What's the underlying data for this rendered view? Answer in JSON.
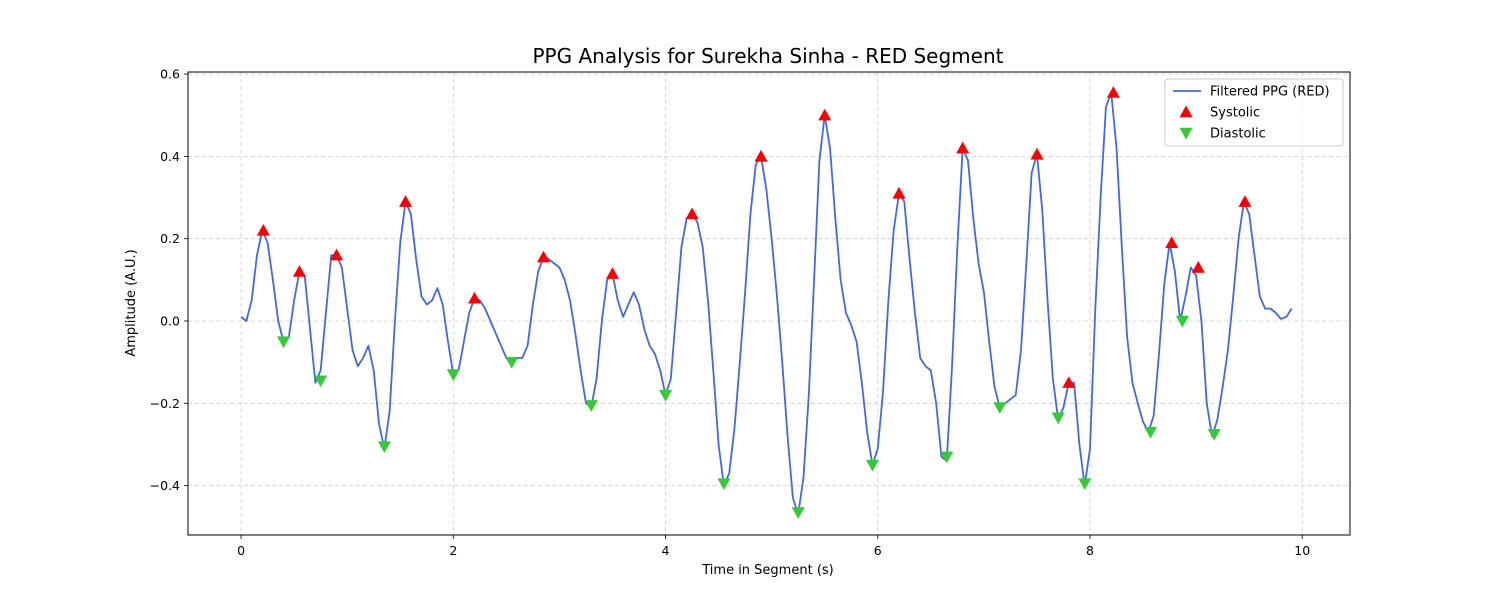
{
  "chart_data": {
    "type": "line",
    "title": "PPG Analysis for Surekha Sinha - RED Segment",
    "xlabel": "Time in Segment (s)",
    "ylabel": "Amplitude (A.U.)",
    "xlim": [
      -0.5,
      10.45
    ],
    "ylim": [
      -0.52,
      0.605
    ],
    "xticks": [
      0,
      2,
      4,
      6,
      8,
      10
    ],
    "yticks": [
      -0.4,
      -0.2,
      0.0,
      0.2,
      0.4,
      0.6
    ],
    "xtick_labels": [
      "0",
      "2",
      "4",
      "6",
      "8",
      "10"
    ],
    "ytick_labels": [
      "−0.4",
      "−0.2",
      "0.0",
      "0.2",
      "0.4",
      "0.6"
    ],
    "grid": true,
    "legend_position": "top-right",
    "colors": {
      "line": "#4169e1",
      "systolic": "#ff0000",
      "diastolic": "#32cd32",
      "grid": "#cccccc"
    },
    "series": [
      {
        "name": "Filtered PPG (RED)",
        "kind": "line",
        "x": [
          0,
          0.05,
          0.1,
          0.15,
          0.2,
          0.25,
          0.3,
          0.35,
          0.4,
          0.45,
          0.5,
          0.55,
          0.6,
          0.65,
          0.7,
          0.75,
          0.8,
          0.85,
          0.9,
          0.95,
          1.0,
          1.05,
          1.1,
          1.15,
          1.2,
          1.25,
          1.3,
          1.35,
          1.4,
          1.45,
          1.5,
          1.55,
          1.6,
          1.65,
          1.7,
          1.75,
          1.8,
          1.85,
          1.9,
          1.95,
          2.0,
          2.05,
          2.1,
          2.15,
          2.2,
          2.25,
          2.3,
          2.35,
          2.4,
          2.45,
          2.5,
          2.55,
          2.6,
          2.65,
          2.7,
          2.75,
          2.8,
          2.85,
          2.9,
          2.95,
          3.0,
          3.05,
          3.1,
          3.15,
          3.2,
          3.25,
          3.3,
          3.35,
          3.4,
          3.45,
          3.5,
          3.55,
          3.6,
          3.65,
          3.7,
          3.75,
          3.8,
          3.85,
          3.9,
          3.95,
          4.0,
          4.05,
          4.1,
          4.15,
          4.2,
          4.25,
          4.3,
          4.35,
          4.4,
          4.45,
          4.5,
          4.55,
          4.6,
          4.65,
          4.7,
          4.75,
          4.8,
          4.85,
          4.9,
          4.95,
          5.0,
          5.05,
          5.1,
          5.15,
          5.2,
          5.25,
          5.3,
          5.35,
          5.4,
          5.45,
          5.5,
          5.55,
          5.6,
          5.65,
          5.7,
          5.75,
          5.8,
          5.85,
          5.9,
          5.95,
          6.0,
          6.05,
          6.1,
          6.15,
          6.2,
          6.25,
          6.3,
          6.35,
          6.4,
          6.45,
          6.5,
          6.55,
          6.6,
          6.65,
          6.7,
          6.75,
          6.8,
          6.85,
          6.9,
          6.95,
          7.0,
          7.05,
          7.1,
          7.15,
          7.2,
          7.25,
          7.3,
          7.35,
          7.4,
          7.45,
          7.5,
          7.55,
          7.6,
          7.65,
          7.7,
          7.75,
          7.8,
          7.85,
          7.9,
          7.95,
          8.0,
          8.05,
          8.1,
          8.15,
          8.2,
          8.25,
          8.3,
          8.35,
          8.4,
          8.45,
          8.5,
          8.55,
          8.6,
          8.65,
          8.7,
          8.75,
          8.8,
          8.85,
          8.9,
          8.95,
          9.0,
          9.05,
          9.1,
          9.15,
          9.2,
          9.25,
          9.3,
          9.35,
          9.4,
          9.45,
          9.5,
          9.55,
          9.6,
          9.65,
          9.7,
          9.75,
          9.8,
          9.85,
          9.9
        ],
        "values": [
          0.01,
          0.0,
          0.05,
          0.16,
          0.22,
          0.19,
          0.1,
          0.0,
          -0.05,
          -0.04,
          0.05,
          0.12,
          0.11,
          -0.02,
          -0.15,
          -0.12,
          0.02,
          0.16,
          0.16,
          0.13,
          0.03,
          -0.07,
          -0.11,
          -0.09,
          -0.06,
          -0.12,
          -0.25,
          -0.31,
          -0.22,
          0.0,
          0.19,
          0.29,
          0.26,
          0.15,
          0.06,
          0.04,
          0.05,
          0.08,
          0.04,
          -0.05,
          -0.13,
          -0.12,
          -0.05,
          0.02,
          0.055,
          0.05,
          0.03,
          0.0,
          -0.03,
          -0.06,
          -0.09,
          -0.1,
          -0.09,
          -0.09,
          -0.06,
          0.04,
          0.12,
          0.155,
          0.15,
          0.14,
          0.13,
          0.1,
          0.05,
          -0.03,
          -0.12,
          -0.2,
          -0.21,
          -0.14,
          0.0,
          0.1,
          0.115,
          0.05,
          0.01,
          0.04,
          0.07,
          0.04,
          -0.02,
          -0.06,
          -0.08,
          -0.12,
          -0.18,
          -0.14,
          0.02,
          0.18,
          0.25,
          0.26,
          0.24,
          0.18,
          0.05,
          -0.12,
          -0.3,
          -0.4,
          -0.37,
          -0.26,
          -0.1,
          0.07,
          0.26,
          0.38,
          0.4,
          0.32,
          0.2,
          0.06,
          -0.1,
          -0.28,
          -0.43,
          -0.47,
          -0.38,
          -0.18,
          0.1,
          0.39,
          0.5,
          0.42,
          0.25,
          0.1,
          0.02,
          -0.01,
          -0.05,
          -0.15,
          -0.27,
          -0.35,
          -0.31,
          -0.17,
          0.05,
          0.22,
          0.31,
          0.29,
          0.15,
          0.02,
          -0.09,
          -0.11,
          -0.12,
          -0.2,
          -0.33,
          -0.34,
          -0.11,
          0.18,
          0.42,
          0.39,
          0.25,
          0.14,
          0.07,
          -0.05,
          -0.16,
          -0.21,
          -0.2,
          -0.19,
          -0.18,
          -0.07,
          0.14,
          0.36,
          0.405,
          0.27,
          0.05,
          -0.14,
          -0.24,
          -0.21,
          -0.15,
          -0.15,
          -0.3,
          -0.4,
          -0.31,
          0.03,
          0.3,
          0.52,
          0.555,
          0.42,
          0.18,
          -0.04,
          -0.15,
          -0.2,
          -0.245,
          -0.27,
          -0.23,
          -0.08,
          0.09,
          0.19,
          0.12,
          0.0,
          0.06,
          0.13,
          0.11,
          0.0,
          -0.2,
          -0.28,
          -0.24,
          -0.16,
          -0.07,
          0.06,
          0.2,
          0.29,
          0.26,
          0.16,
          0.06,
          0.03,
          0.03,
          0.02,
          0.005,
          0.01,
          0.03
        ]
      },
      {
        "name": "Systolic",
        "kind": "marker",
        "marker": "triangle-up",
        "x": [
          0.21,
          0.55,
          0.9,
          1.55,
          2.2,
          2.85,
          3.5,
          4.25,
          4.9,
          5.5,
          6.2,
          6.8,
          7.5,
          7.8,
          8.22,
          8.77,
          9.02,
          9.46
        ],
        "values": [
          0.22,
          0.12,
          0.16,
          0.29,
          0.055,
          0.155,
          0.115,
          0.26,
          0.4,
          0.5,
          0.31,
          0.42,
          0.405,
          -0.15,
          0.555,
          0.19,
          0.13,
          0.29
        ]
      },
      {
        "name": "Diastolic",
        "kind": "marker",
        "marker": "triangle-down",
        "x": [
          0.4,
          0.75,
          1.35,
          2.0,
          2.55,
          3.3,
          4.0,
          4.55,
          5.25,
          5.95,
          6.65,
          7.15,
          7.7,
          7.95,
          8.57,
          8.87,
          9.17
        ],
        "values": [
          -0.05,
          -0.145,
          -0.305,
          -0.13,
          -0.1,
          -0.205,
          -0.18,
          -0.395,
          -0.465,
          -0.35,
          -0.33,
          -0.21,
          -0.235,
          -0.395,
          -0.27,
          0.0,
          -0.275
        ]
      }
    ]
  }
}
